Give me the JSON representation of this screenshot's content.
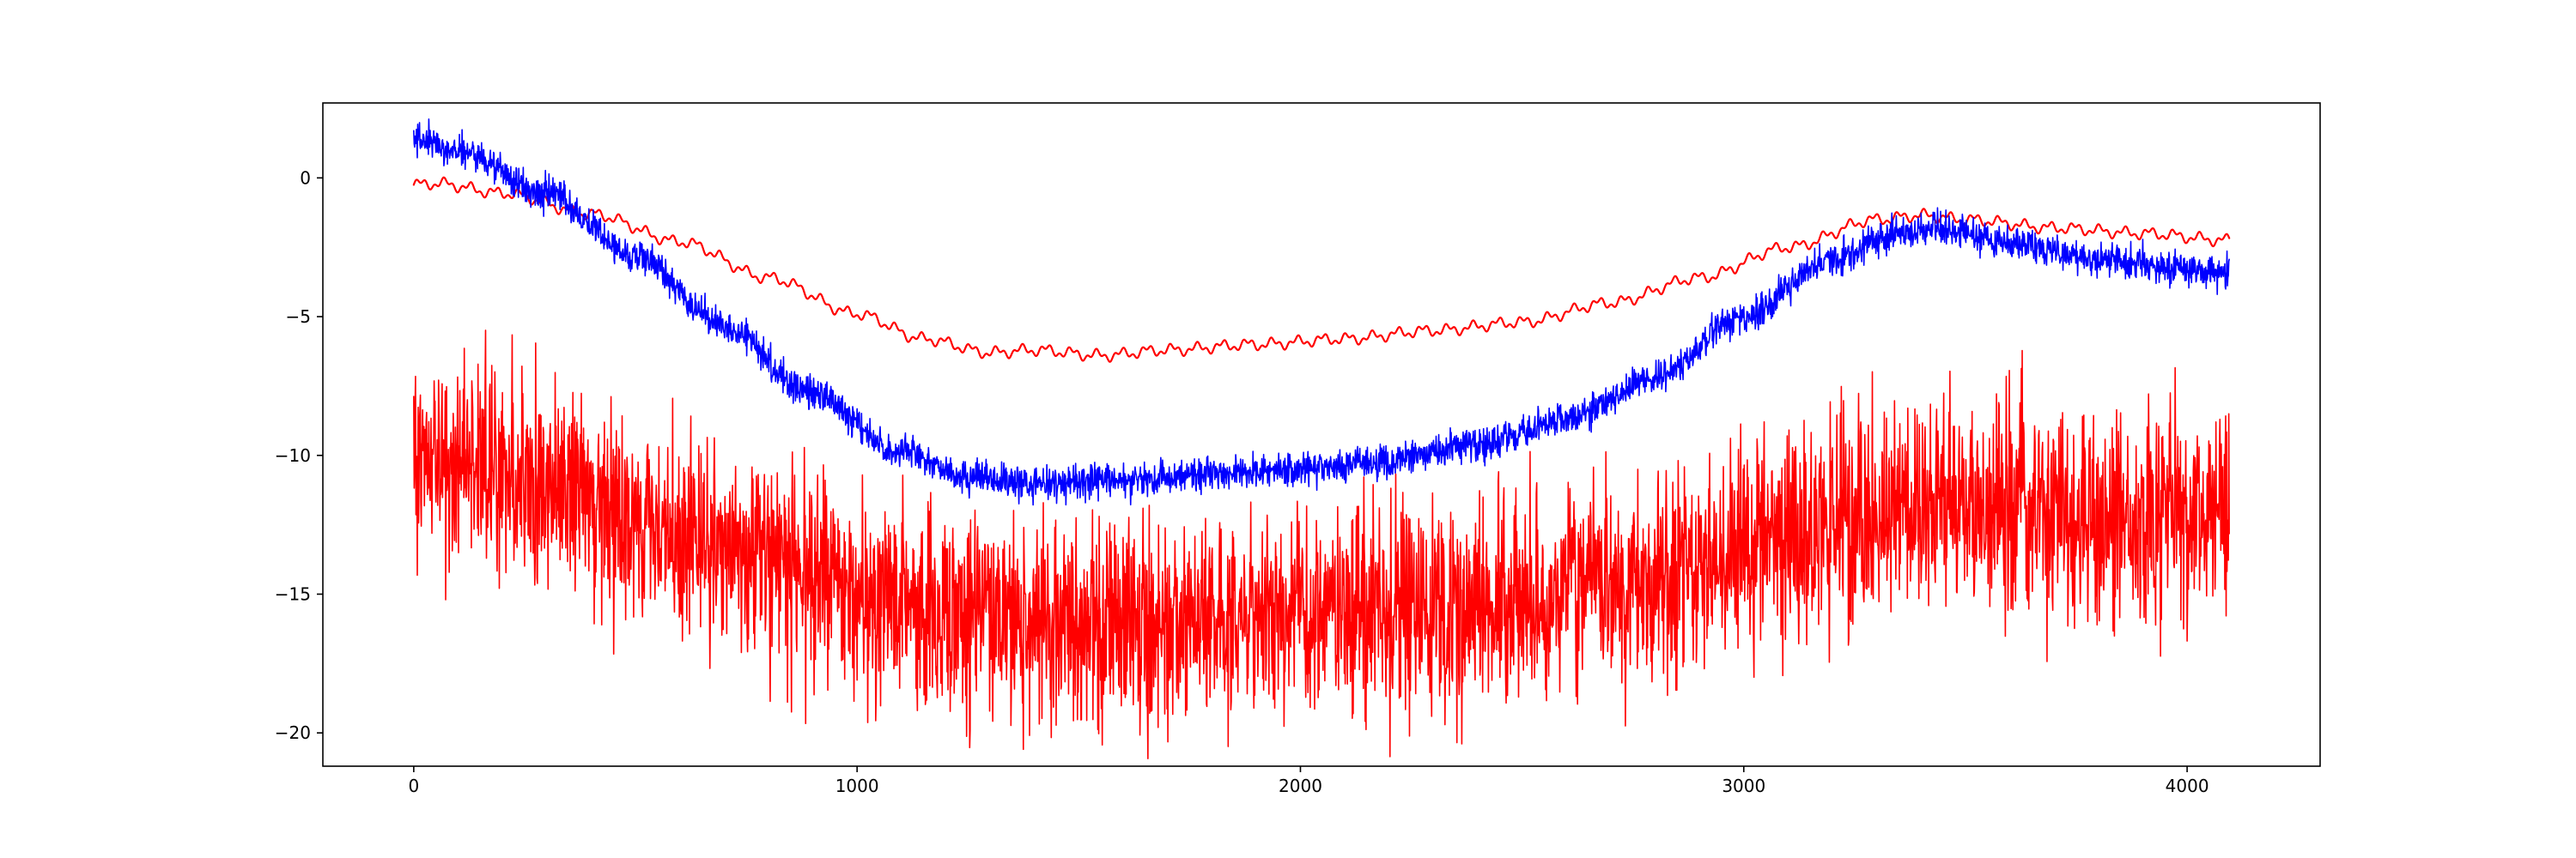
{
  "chart_data": {
    "type": "line",
    "title": "",
    "xlabel": "",
    "ylabel": "",
    "xlim": [
      -205,
      4300
    ],
    "ylim": [
      -21.2,
      2.7
    ],
    "x_ticks": [
      0,
      1000,
      2000,
      3000,
      4000
    ],
    "x_tick_labels": [
      "0",
      "1000",
      "2000",
      "3000",
      "4000"
    ],
    "y_ticks": [
      0,
      -5,
      -10,
      -15,
      -20
    ],
    "y_tick_labels": [
      "0",
      "−5",
      "−10",
      "−15",
      "−20"
    ],
    "grid": false,
    "legend": "none",
    "n_points": 4096,
    "series": [
      {
        "color": "#ff0000",
        "style": "smooth",
        "noise_amplitude": 0.15,
        "x": [
          0,
          50,
          200,
          400,
          600,
          800,
          1000,
          1150,
          1300,
          1400,
          1550,
          1700,
          1900,
          2100,
          2300,
          2500,
          2700,
          2900,
          3100,
          3300,
          3400,
          3500,
          3700,
          3900,
          4095
        ],
        "y": [
          -0.25,
          -0.2,
          -0.55,
          -1.3,
          -2.3,
          -3.6,
          -4.9,
          -5.8,
          -6.3,
          -6.2,
          -6.4,
          -6.2,
          -6.0,
          -5.8,
          -5.5,
          -5.2,
          -4.5,
          -3.6,
          -2.5,
          -1.5,
          -1.35,
          -1.5,
          -1.8,
          -2.0,
          -2.25
        ]
      },
      {
        "color": "#0000ff",
        "style": "noisy",
        "noise_amplitude": 0.6,
        "x": [
          0,
          100,
          300,
          500,
          700,
          900,
          1100,
          1250,
          1400,
          1600,
          1800,
          2000,
          2200,
          2400,
          2600,
          2800,
          3000,
          3200,
          3350,
          3450,
          3600,
          3800,
          4000,
          4095
        ],
        "y": [
          1.4,
          1.0,
          -0.6,
          -2.8,
          -5.3,
          -7.8,
          -9.9,
          -10.8,
          -11.0,
          -10.9,
          -10.7,
          -10.5,
          -10.2,
          -9.6,
          -8.7,
          -7.2,
          -5.0,
          -2.9,
          -1.95,
          -1.85,
          -2.3,
          -2.9,
          -3.3,
          -3.45
        ]
      },
      {
        "color": "#ff0000",
        "style": "noisy",
        "noise_amplitude": 3.6,
        "x": [
          0,
          100,
          300,
          500,
          700,
          900,
          1100,
          1300,
          1500,
          1700,
          1900,
          2100,
          2300,
          2500,
          2700,
          2900,
          3100,
          3300,
          3500,
          3700,
          3900,
          4095
        ],
        "y": [
          -10.0,
          -10.2,
          -11.0,
          -12.3,
          -13.4,
          -14.5,
          -15.4,
          -15.9,
          -16.0,
          -16.0,
          -15.9,
          -15.7,
          -15.4,
          -15.1,
          -14.6,
          -13.8,
          -12.9,
          -12.1,
          -11.8,
          -12.0,
          -12.3,
          -12.5
        ]
      }
    ]
  }
}
